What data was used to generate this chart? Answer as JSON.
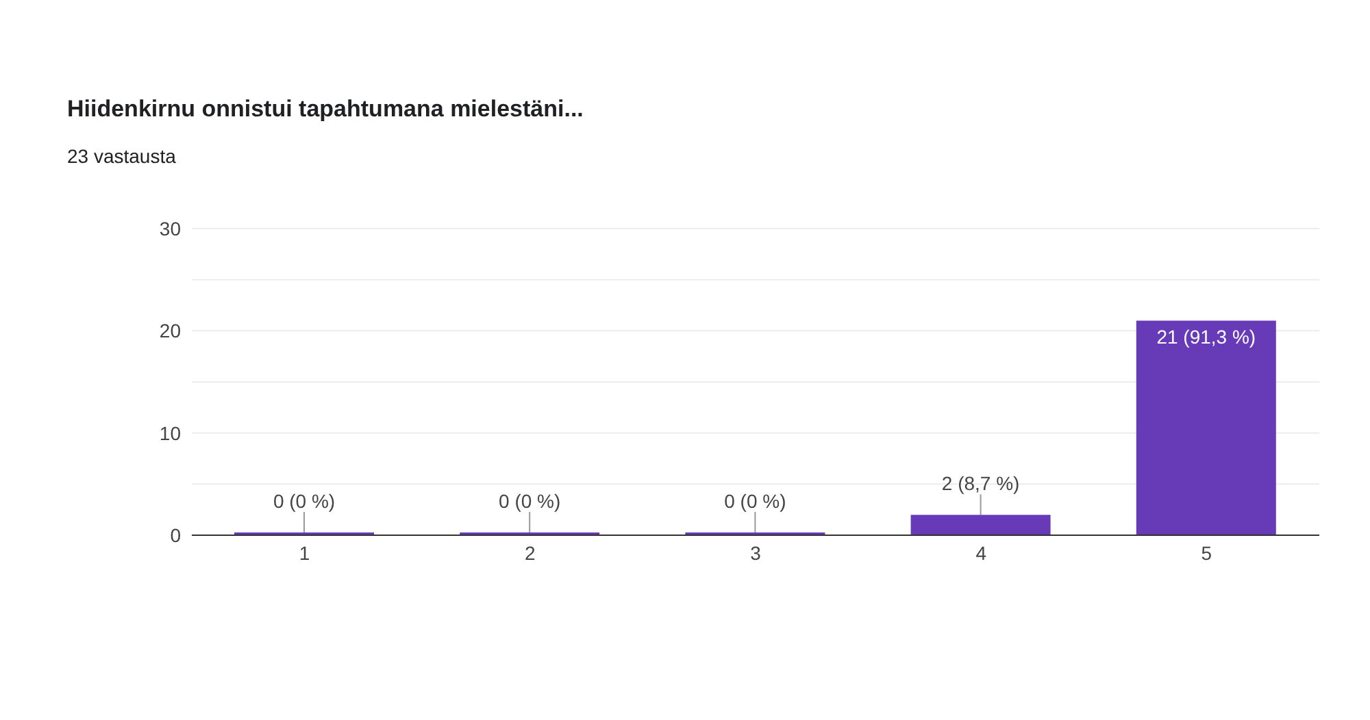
{
  "chart_data": {
    "type": "bar",
    "title": "Hiidenkirnu onnistui tapahtumana mielestäni...",
    "subtitle": "23 vastausta",
    "categories": [
      "1",
      "2",
      "3",
      "4",
      "5"
    ],
    "values": [
      0,
      0,
      0,
      2,
      21
    ],
    "value_labels": [
      "0 (0 %)",
      "0 (0 %)",
      "0 (0 %)",
      "2 (8,7 %)",
      "21 (91,3 %)"
    ],
    "color": "#673ab7",
    "ylim": [
      0,
      30
    ],
    "yticks": [
      0,
      {
        "value": 5,
        "label": null
      },
      10,
      {
        "value": 15,
        "label": null
      },
      20,
      {
        "value": 25,
        "label": null
      },
      30
    ],
    "grid": "y",
    "legend": false
  }
}
